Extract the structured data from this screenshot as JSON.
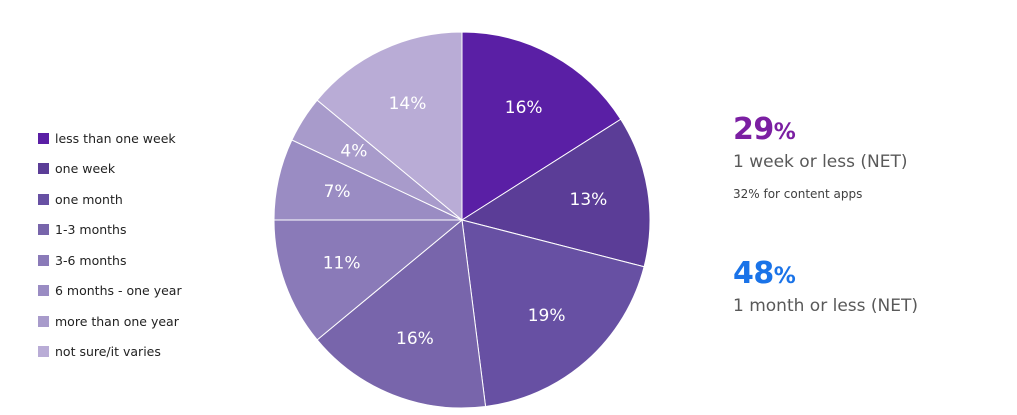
{
  "chart_data": {
    "type": "pie",
    "categories": [
      "less than one week",
      "one week",
      "one month",
      "1-3 months",
      "3-6 months",
      "6 months - one year",
      "more than one year",
      "not sure/it varies"
    ],
    "values": [
      16,
      13,
      19,
      16,
      11,
      7,
      4,
      14
    ],
    "data_labels": [
      "16%",
      "13%",
      "19%",
      "16%",
      "11%",
      "7%",
      "4%",
      "14%"
    ],
    "colors": [
      "#5a1fa5",
      "#5b3d97",
      "#6750a3",
      "#7865ab",
      "#8a7ab8",
      "#9a8cc3",
      "#a89bcb",
      "#b9acd6"
    ],
    "legend_placement": "left",
    "start_angle_deg": 0,
    "direction": "clockwise"
  },
  "callouts": [
    {
      "value": "29",
      "unit": "%",
      "caption": "1 week or less (NET)",
      "note": "32% for content apps",
      "color": "#7b1fa2"
    },
    {
      "value": "48",
      "unit": "%",
      "caption": "1 month or less (NET)",
      "note": "",
      "color": "#1a73e8"
    }
  ]
}
